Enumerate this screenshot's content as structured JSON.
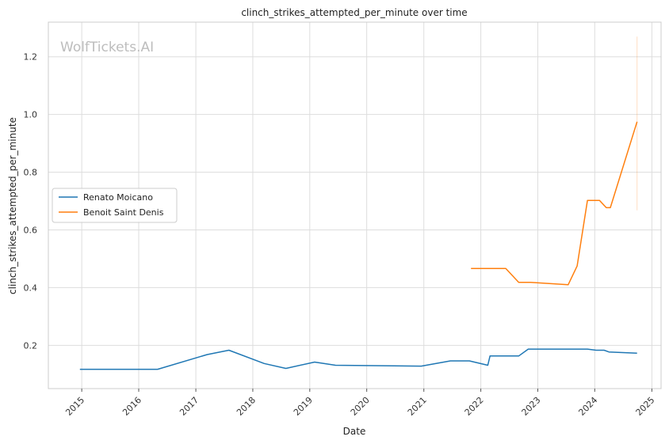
{
  "chart_data": {
    "type": "line",
    "title": "clinch_strikes_attempted_per_minute over time",
    "xlabel": "Date",
    "ylabel": "clinch_strikes_attempted_per_minute",
    "watermark": "WolfTickets.AI",
    "xlim": [
      "2014-06-01",
      "2025-03-01"
    ],
    "ylim": [
      0.05,
      1.32
    ],
    "x_ticks": [
      "2015",
      "2016",
      "2017",
      "2018",
      "2019",
      "2020",
      "2021",
      "2022",
      "2023",
      "2024",
      "2025"
    ],
    "y_ticks": [
      0.2,
      0.4,
      0.6,
      0.8,
      1.0,
      1.2
    ],
    "y_tick_labels": [
      "0.2",
      "0.4",
      "0.6",
      "0.8",
      "1.0",
      "1.2"
    ],
    "grid": true,
    "legend_position": "center-left",
    "series": [
      {
        "name": "Renato Moicano",
        "color": "#1f77b4",
        "x": [
          "2014-12-20",
          "2016-05-01",
          "2017-03-15",
          "2017-08-01",
          "2018-03-15",
          "2018-08-01",
          "2019-02-01",
          "2019-06-15",
          "2020-12-15",
          "2021-06-20",
          "2021-10-20",
          "2022-02-15",
          "2022-03-01",
          "2022-09-01",
          "2022-11-01",
          "2023-11-15",
          "2024-01-10",
          "2024-03-01",
          "2024-04-01",
          "2024-09-28"
        ],
        "values": [
          0.117,
          0.117,
          0.168,
          0.183,
          0.137,
          0.12,
          0.142,
          0.131,
          0.128,
          0.146,
          0.146,
          0.131,
          0.163,
          0.163,
          0.187,
          0.187,
          0.183,
          0.183,
          0.177,
          0.173
        ]
      },
      {
        "name": "Benoit Saint Denis",
        "color": "#ff7f0e",
        "x": [
          "2021-10-30",
          "2022-06-10",
          "2022-09-01",
          "2022-11-15",
          "2023-07-15",
          "2023-09-10",
          "2023-11-15",
          "2024-02-01",
          "2024-03-15",
          "2024-04-10",
          "2024-09-28"
        ],
        "values": [
          0.466,
          0.466,
          0.418,
          0.418,
          0.41,
          0.475,
          0.702,
          0.702,
          0.677,
          0.677,
          0.975
        ],
        "error_band": {
          "x": "2024-09-28",
          "low": 0.668,
          "high": 1.27
        }
      }
    ]
  }
}
